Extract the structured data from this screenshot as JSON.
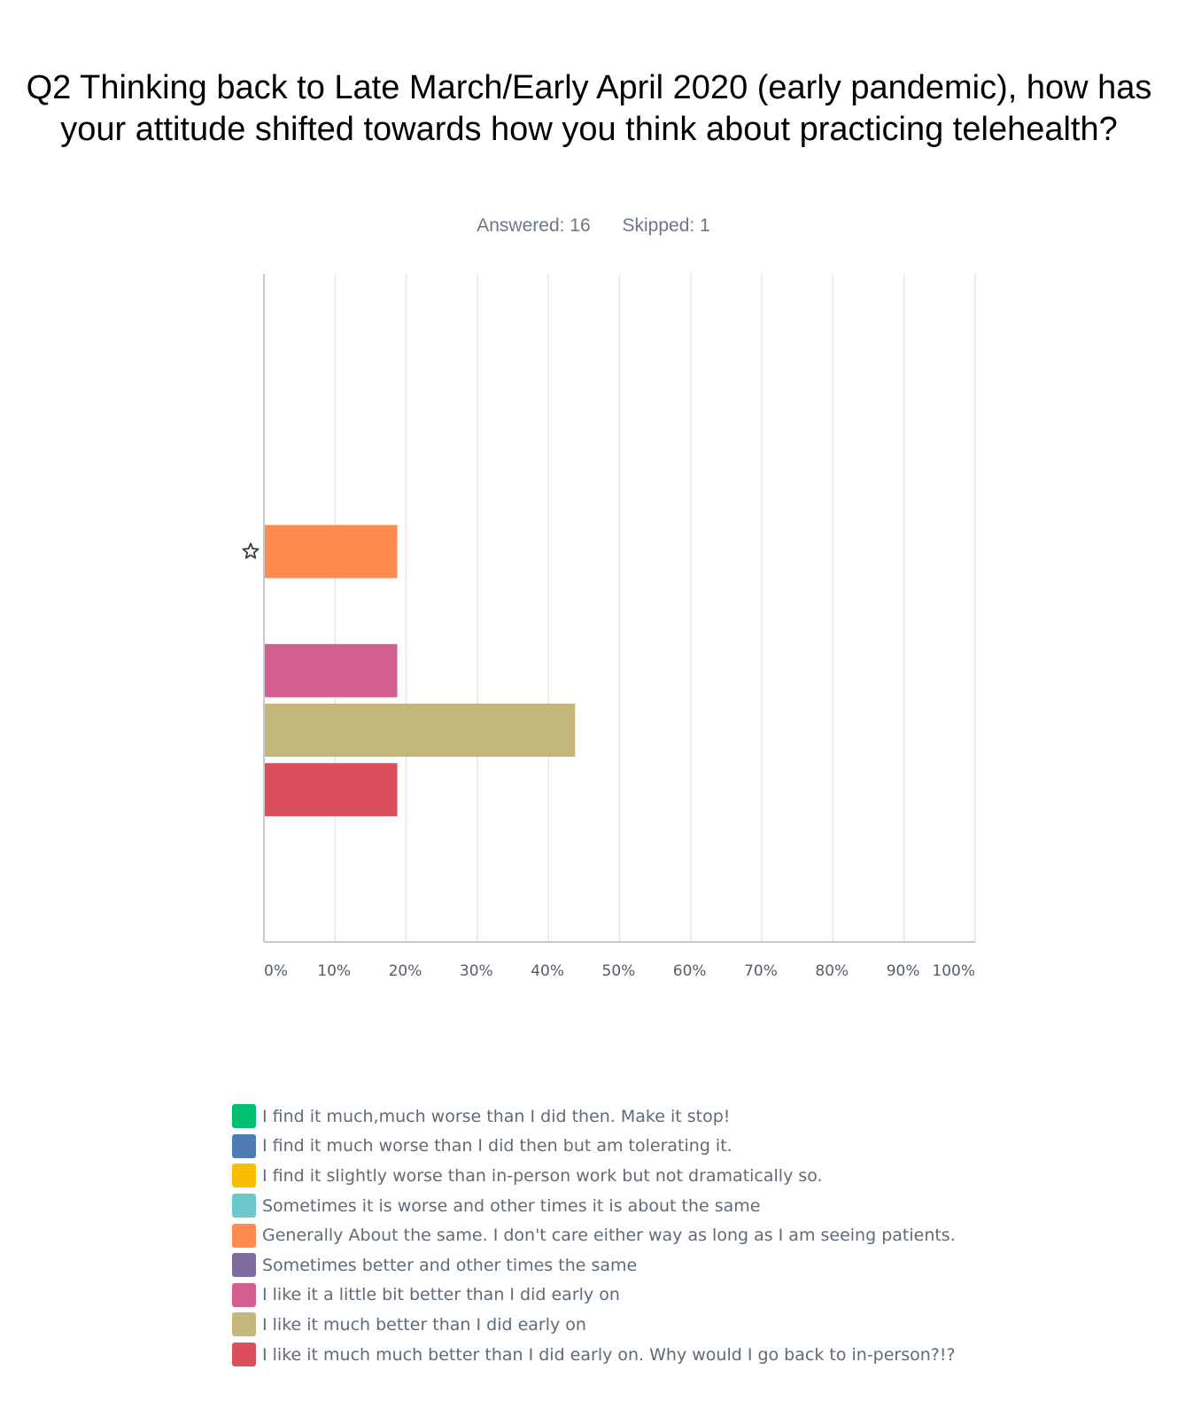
{
  "header": {
    "title": "Q2 Thinking back to Late March/Early April 2020 (early pandemic), how has your attitude shifted towards how you think about practicing telehealth?",
    "answered": "Answered: 16",
    "skipped": "Skipped: 1"
  },
  "chart_data": {
    "type": "bar",
    "orientation": "horizontal",
    "title": "Q2 Thinking back to Late March/Early April 2020 (early pandemic), how has your attitude shifted towards how you think about practicing telehealth?",
    "xlabel": "",
    "ylabel": "",
    "xlim": [
      0,
      100
    ],
    "x_ticks": [
      "0%",
      "10%",
      "20%",
      "30%",
      "40%",
      "50%",
      "60%",
      "70%",
      "80%",
      "90%",
      "100%"
    ],
    "grid": "vertical",
    "legend_position": "bottom",
    "categories": [
      "I find it much,much worse than I did then. Make it stop!",
      "I find it much worse than I did then but am tolerating it.",
      "I find it slightly worse than in-person work but not dramatically so.",
      "Sometimes it is worse and other times it is about the same",
      "Generally About the same. I don't care either way as long as I am seeing patients.",
      "Sometimes better and other times the same",
      "I like it a little bit better than I did early on",
      "I like it much better than I did early on",
      "I like it much much better than I did early on. Why would I go back to in-person?!?"
    ],
    "values": [
      0,
      0,
      0,
      0,
      18.75,
      0,
      18.75,
      43.75,
      18.75
    ],
    "colors": [
      "#00bf6f",
      "#507cb6",
      "#f9be00",
      "#6bc8cd",
      "#ff8b4f",
      "#7f6aa0",
      "#d25f90",
      "#c4b77a",
      "#db4e5c"
    ],
    "starred_category": 4
  }
}
